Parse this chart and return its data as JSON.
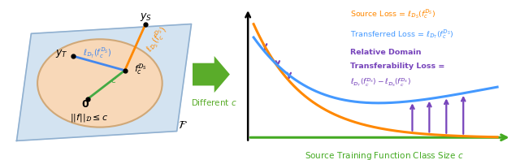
{
  "fig_width": 6.4,
  "fig_height": 1.97,
  "dpi": 100,
  "left_panel": {
    "plane_color": "#cfe0f0",
    "plane_edge_color": "#90b0d0",
    "circle_color": "#f8d8b8",
    "circle_edge_color": "#d0a878",
    "line_blue_color": "#4488ee",
    "line_orange_color": "#ff8800",
    "line_green_color": "#44aa44"
  },
  "arrow_color": "#5aac2a",
  "arrow_text": "Different $c$",
  "right_panel": {
    "source_loss_color": "#ff8800",
    "transfer_loss_color": "#4499ff",
    "gap_color": "#7744bb",
    "xaxis_color": "#44aa22",
    "source_loss_text": "Source Loss = $\\ell_{\\mathcal{D}_S}(f_c^{\\mathcal{D}_S})$",
    "transfer_loss_text": "Transferred Loss = $\\ell_{\\mathcal{D}_T}(f_c^{\\mathcal{D}_S})$",
    "gap_text1": "Relative Domain",
    "gap_text2": "Transferability Loss =",
    "gap_text3": "$\\ell_{\\mathcal{D}_T}(f_c^{\\mathcal{D}_S}) - \\ell_{\\mathcal{D}_S}(f_c^{\\mathcal{D}_S})$",
    "xlabel": "Source Training Function Class Size $c$"
  }
}
